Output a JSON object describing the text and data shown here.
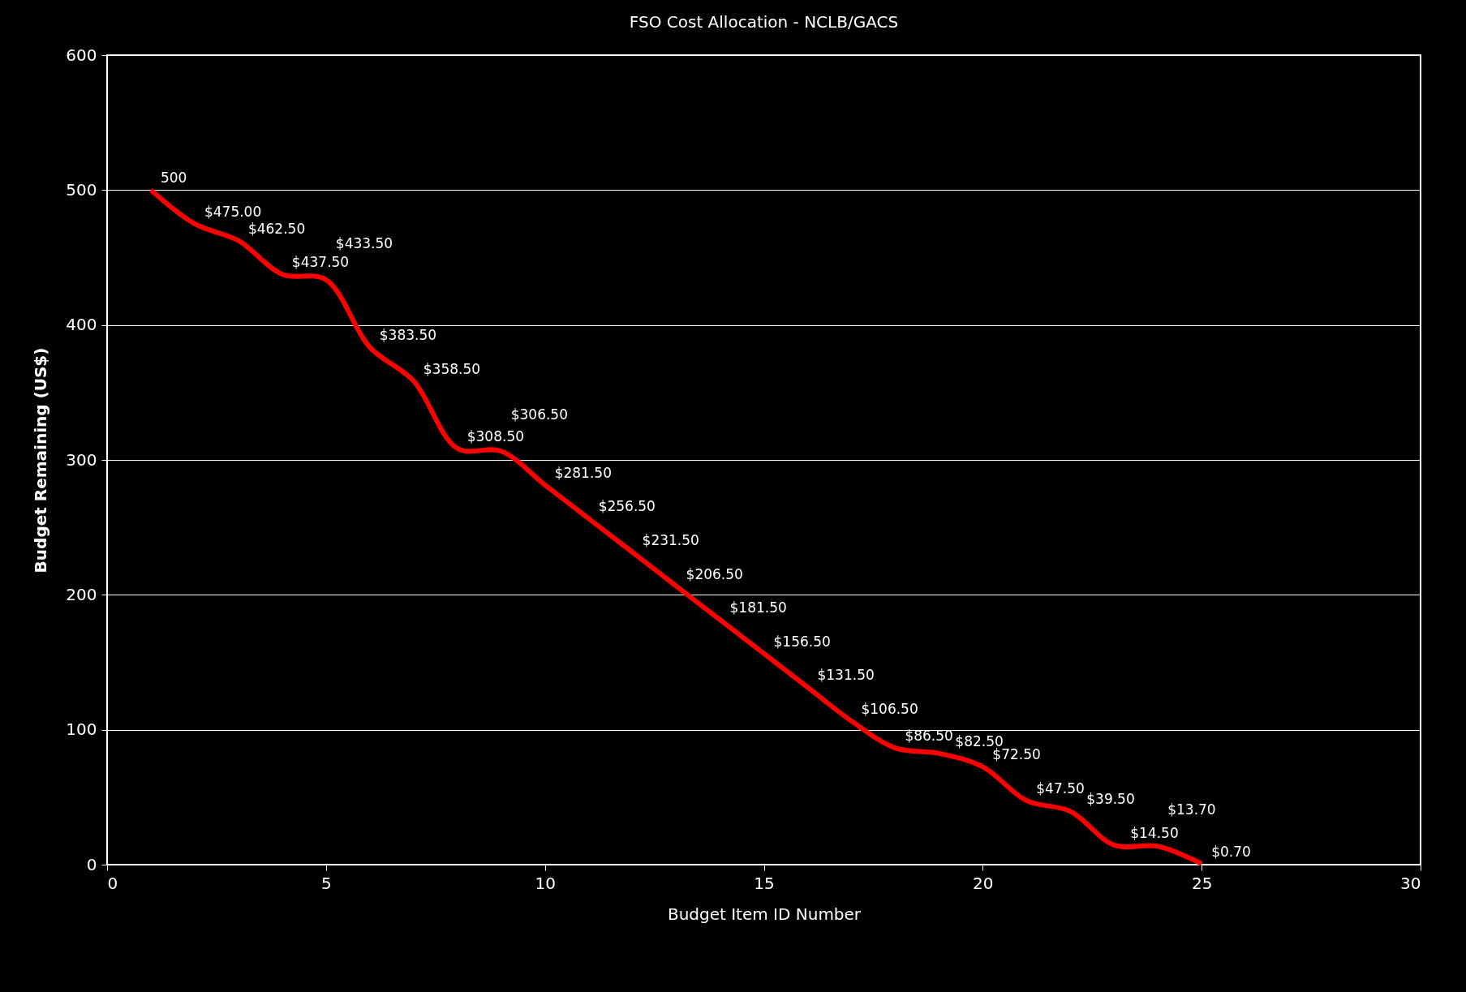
{
  "chart_data": {
    "type": "line",
    "title": "FSO Cost Allocation - NCLB/GACS",
    "xlabel": "Budget Item ID Number",
    "ylabel": "Budget Remaining (US$)",
    "x": [
      1,
      2,
      3,
      4,
      5,
      6,
      7,
      8,
      9,
      10,
      11,
      12,
      13,
      14,
      15,
      16,
      17,
      18,
      19,
      20,
      21,
      22,
      23,
      24,
      25
    ],
    "series": [
      {
        "color": "#ff0000",
        "values": [
          500,
          475,
          462.5,
          437.5,
          433.5,
          383.5,
          358.5,
          308.5,
          306.5,
          281.5,
          256.5,
          231.5,
          206.5,
          181.5,
          156.5,
          131.5,
          106.5,
          86.5,
          82.5,
          72.5,
          47.5,
          39.5,
          14.5,
          13.7,
          0.7
        ],
        "value_labels": [
          "500",
          "$475.00",
          "$462.50",
          "$437.50",
          "$433.50",
          "$383.50",
          "$358.50",
          "$308.50",
          "$306.50",
          "$281.50",
          "$256.50",
          "$231.50",
          "$206.50",
          "$181.50",
          "$156.50",
          "$131.50",
          "$106.50",
          "$86.50",
          "$82.50",
          "$72.50",
          "$47.50",
          "$39.50",
          "$14.50",
          "$13.70",
          "$0.70"
        ]
      }
    ],
    "xlim": [
      0,
      30
    ],
    "xticks": [
      0,
      5,
      10,
      15,
      20,
      25,
      30
    ],
    "ylim": [
      0,
      600
    ],
    "yticks": [
      0,
      100,
      200,
      300,
      400,
      500,
      600
    ],
    "grid": "y",
    "marker": "none",
    "line_style": "solid"
  }
}
